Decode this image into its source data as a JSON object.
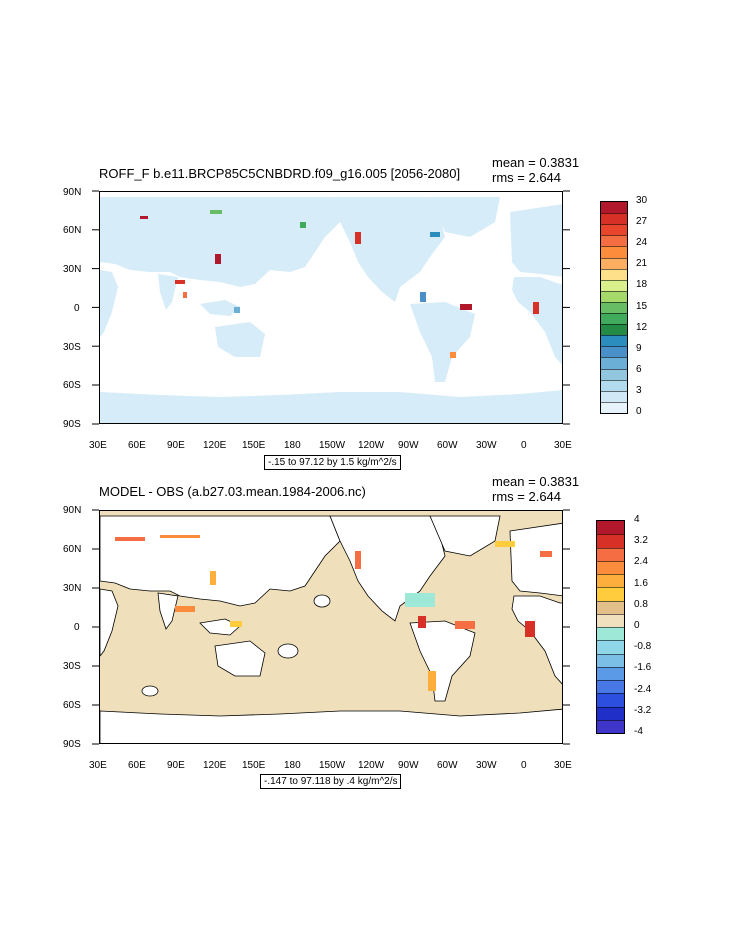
{
  "panels": [
    {
      "title": "ROFF_F b.e11.BRCP85C5CNBDRD.f09_g16.005 [2056-2080]",
      "mean": "mean = 0.3831",
      "rms": "rms = 2.644",
      "range": "-.15 to 97.12 by 1.5 kg/m^2/s",
      "lat_labels": [
        "90N",
        "60N",
        "30N",
        "0",
        "30S",
        "60S",
        "90S"
      ],
      "lon_labels": [
        "30E",
        "60E",
        "90E",
        "120E",
        "150E",
        "180",
        "150W",
        "120W",
        "90W",
        "60W",
        "30W",
        "0",
        "30E"
      ],
      "colorbar": {
        "labels": [
          "30",
          "27",
          "24",
          "21",
          "18",
          "15",
          "12",
          "9",
          "6",
          "3",
          "0"
        ],
        "colors": [
          "#b2182b",
          "#d73027",
          "#e8452c",
          "#f46d43",
          "#fd8d3c",
          "#fdae61",
          "#fee08b",
          "#d9ef8b",
          "#a6d96a",
          "#66bd63",
          "#41ab5d",
          "#238b45",
          "#2b8cbe",
          "#4a90c8",
          "#6baed6",
          "#92c5de",
          "#b3dbee",
          "#d1e9f6",
          "#e6f3fb"
        ]
      },
      "field_colors": {
        "land": "#d6ecf8",
        "background": "#ffffff"
      }
    },
    {
      "title": "MODEL - OBS (a.b27.03.mean.1984-2006.nc)",
      "mean": "mean = 0.3831",
      "rms": "rms = 2.644",
      "range": "-.147 to 97.118 by .4 kg/m^2/s",
      "lat_labels": [
        "90N",
        "60N",
        "30N",
        "0",
        "30S",
        "60S",
        "90S"
      ],
      "lon_labels": [
        "30E",
        "60E",
        "90E",
        "120E",
        "150E",
        "180",
        "150W",
        "120W",
        "90W",
        "60W",
        "30W",
        "0",
        "30E"
      ],
      "colorbar": {
        "labels": [
          "4",
          "3.2",
          "2.4",
          "1.6",
          "0.8",
          "0",
          "-0.8",
          "-1.6",
          "-2.4",
          "-3.2",
          "-4"
        ],
        "colors": [
          "#b2182b",
          "#d73027",
          "#f46d43",
          "#fb8c3c",
          "#fdae3c",
          "#fecc3c",
          "#e3c08a",
          "#f0e0bd",
          "#9ee8d8",
          "#8fd6e9",
          "#7bbfe6",
          "#5a9ae6",
          "#4778e6",
          "#2c4fe0",
          "#1f2fc8",
          "#3f35c8"
        ]
      },
      "field_colors": {
        "ocean": "#efdfba",
        "land": "#ffffff"
      }
    }
  ]
}
